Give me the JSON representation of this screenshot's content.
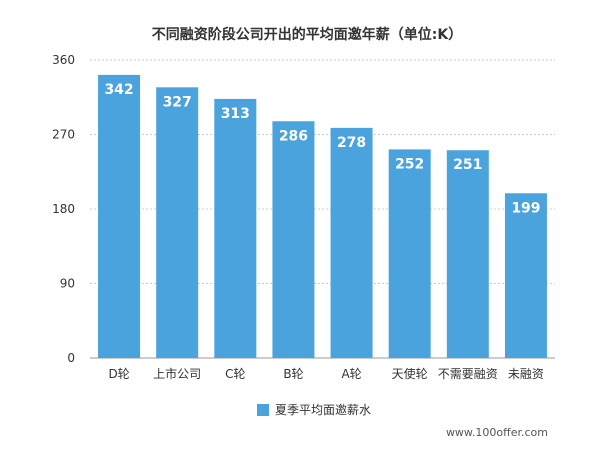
{
  "chart_data": {
    "type": "bar",
    "title": "不同融资阶段公司开出的平均面邀年薪（单位:K）",
    "categories": [
      "D轮",
      "上市公司",
      "C轮",
      "B轮",
      "A轮",
      "天使轮",
      "不需要融资",
      "未融资"
    ],
    "series": [
      {
        "name": "夏季平均面邀薪水",
        "values": [
          342,
          327,
          313,
          286,
          278,
          252,
          251,
          199
        ]
      }
    ],
    "ylim": [
      0,
      360
    ],
    "yticks": [
      0,
      90,
      180,
      270,
      360
    ],
    "xlabel": "",
    "ylabel": "",
    "grid": true,
    "legend": "bottom-center",
    "bar_color": "#4aa3dc"
  },
  "footer": {
    "source": "www.100offer.com"
  }
}
